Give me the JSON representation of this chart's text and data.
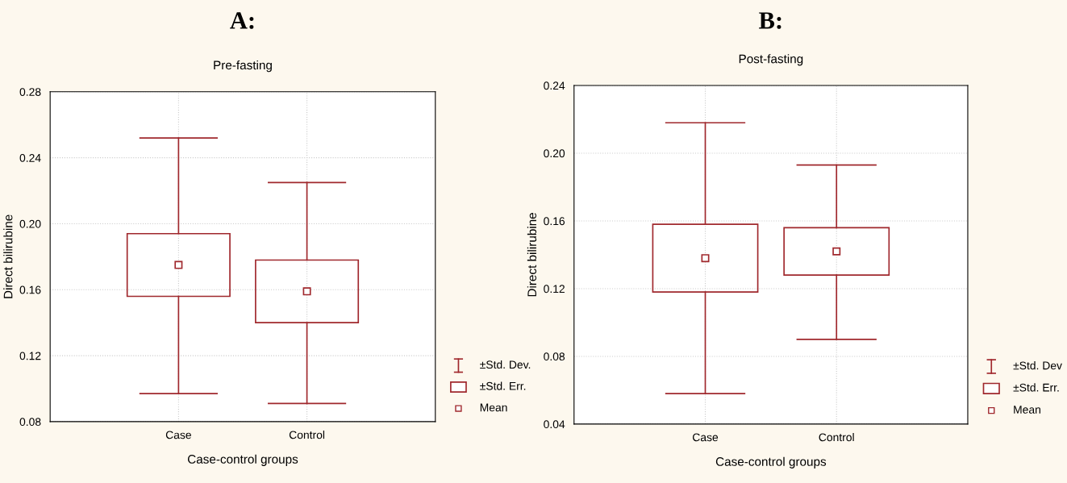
{
  "chart_data": [
    {
      "type": "box",
      "title": "A:",
      "subtitle": "Pre-fasting",
      "xlabel": "Case-control groups",
      "ylabel": "Direct bilirubine",
      "categories": [
        "Case",
        "Control"
      ],
      "color": "#a0282d",
      "boxes": [
        {
          "low": 0.097,
          "q1": 0.156,
          "mean": 0.175,
          "q3": 0.194,
          "high": 0.252
        },
        {
          "low": 0.091,
          "q1": 0.14,
          "mean": 0.159,
          "q3": 0.178,
          "high": 0.225
        }
      ],
      "ylim": [
        0.08,
        0.28
      ],
      "yticks": [
        {
          "value": 0.08,
          "label": "0.08"
        },
        {
          "value": 0.12,
          "label": "0.12"
        },
        {
          "value": 0.16,
          "label": "0.16"
        },
        {
          "value": 0.2,
          "label": "0.20"
        },
        {
          "value": 0.24,
          "label": "0.24"
        },
        {
          "value": 0.28,
          "label": "0.28"
        }
      ],
      "grid": true,
      "annotations": [
        "±Std. Dev.",
        "±Std. Err.",
        "Mean"
      ]
    },
    {
      "type": "box",
      "title": "B:",
      "subtitle": "Post-fasting",
      "xlabel": "Case-control groups",
      "ylabel": "Direct bilirubine",
      "categories": [
        "Case",
        "Control"
      ],
      "color": "#a0282d",
      "boxes": [
        {
          "low": 0.058,
          "q1": 0.118,
          "mean": 0.138,
          "q3": 0.158,
          "high": 0.218
        },
        {
          "low": 0.09,
          "q1": 0.128,
          "mean": 0.142,
          "q3": 0.156,
          "high": 0.193
        }
      ],
      "ylim": [
        0.04,
        0.24
      ],
      "yticks": [
        {
          "value": 0.04,
          "label": "0.04"
        },
        {
          "value": 0.08,
          "label": "0.08"
        },
        {
          "value": 0.12,
          "label": "0.12"
        },
        {
          "value": 0.16,
          "label": "0.16"
        },
        {
          "value": 0.2,
          "label": "0.20"
        },
        {
          "value": 0.24,
          "label": "0.24"
        }
      ],
      "grid": true,
      "annotations": [
        "±Std. Dev",
        "±Std. Err.",
        "Mean"
      ]
    }
  ]
}
